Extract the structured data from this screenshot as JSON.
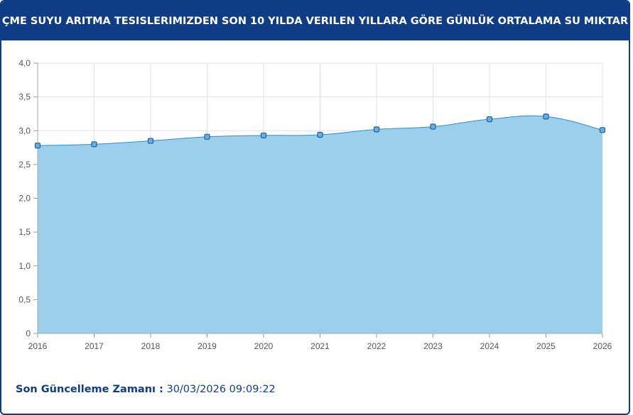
{
  "header": {
    "title": "İÇME SUYU ARITMA TESISLERIMIZDEN SON 10 YILDA VERILEN YILLARA GÖRE GÜNLÜK ORTALAMA SU MIKTARI"
  },
  "chart_data": {
    "type": "area",
    "title": "İÇME SUYU ARITMA TESISLERIMIZDEN SON 10 YILDA VERILEN YILLARA GÖRE GÜNLÜK ORTALAMA SU MIKTARI",
    "x": [
      "2016",
      "2017",
      "2018",
      "2019",
      "2020",
      "2021",
      "2022",
      "2023",
      "2024",
      "2025",
      "2026"
    ],
    "series": [
      {
        "values": [
          2.78,
          2.8,
          2.85,
          2.91,
          2.93,
          2.94,
          3.02,
          3.06,
          3.17,
          3.21,
          3.01
        ]
      }
    ],
    "y_ticks": [
      "0",
      "0,5",
      "1,0",
      "1,5",
      "2,0",
      "2,5",
      "3,0",
      "3,5",
      "4,0"
    ],
    "ylim": [
      0,
      4.0
    ],
    "xlabel": "",
    "ylabel": "",
    "grid": true,
    "colors": {
      "fill": "#9ccfec",
      "line": "#2c8fc9",
      "marker_fill": "#6aaee0",
      "marker_stroke": "#1f5f9e",
      "grid": "#e2e2e2"
    }
  },
  "footer": {
    "label": "Son Güncelleme Zamanı :",
    "value": " 30/03/2026 09:09:22"
  }
}
